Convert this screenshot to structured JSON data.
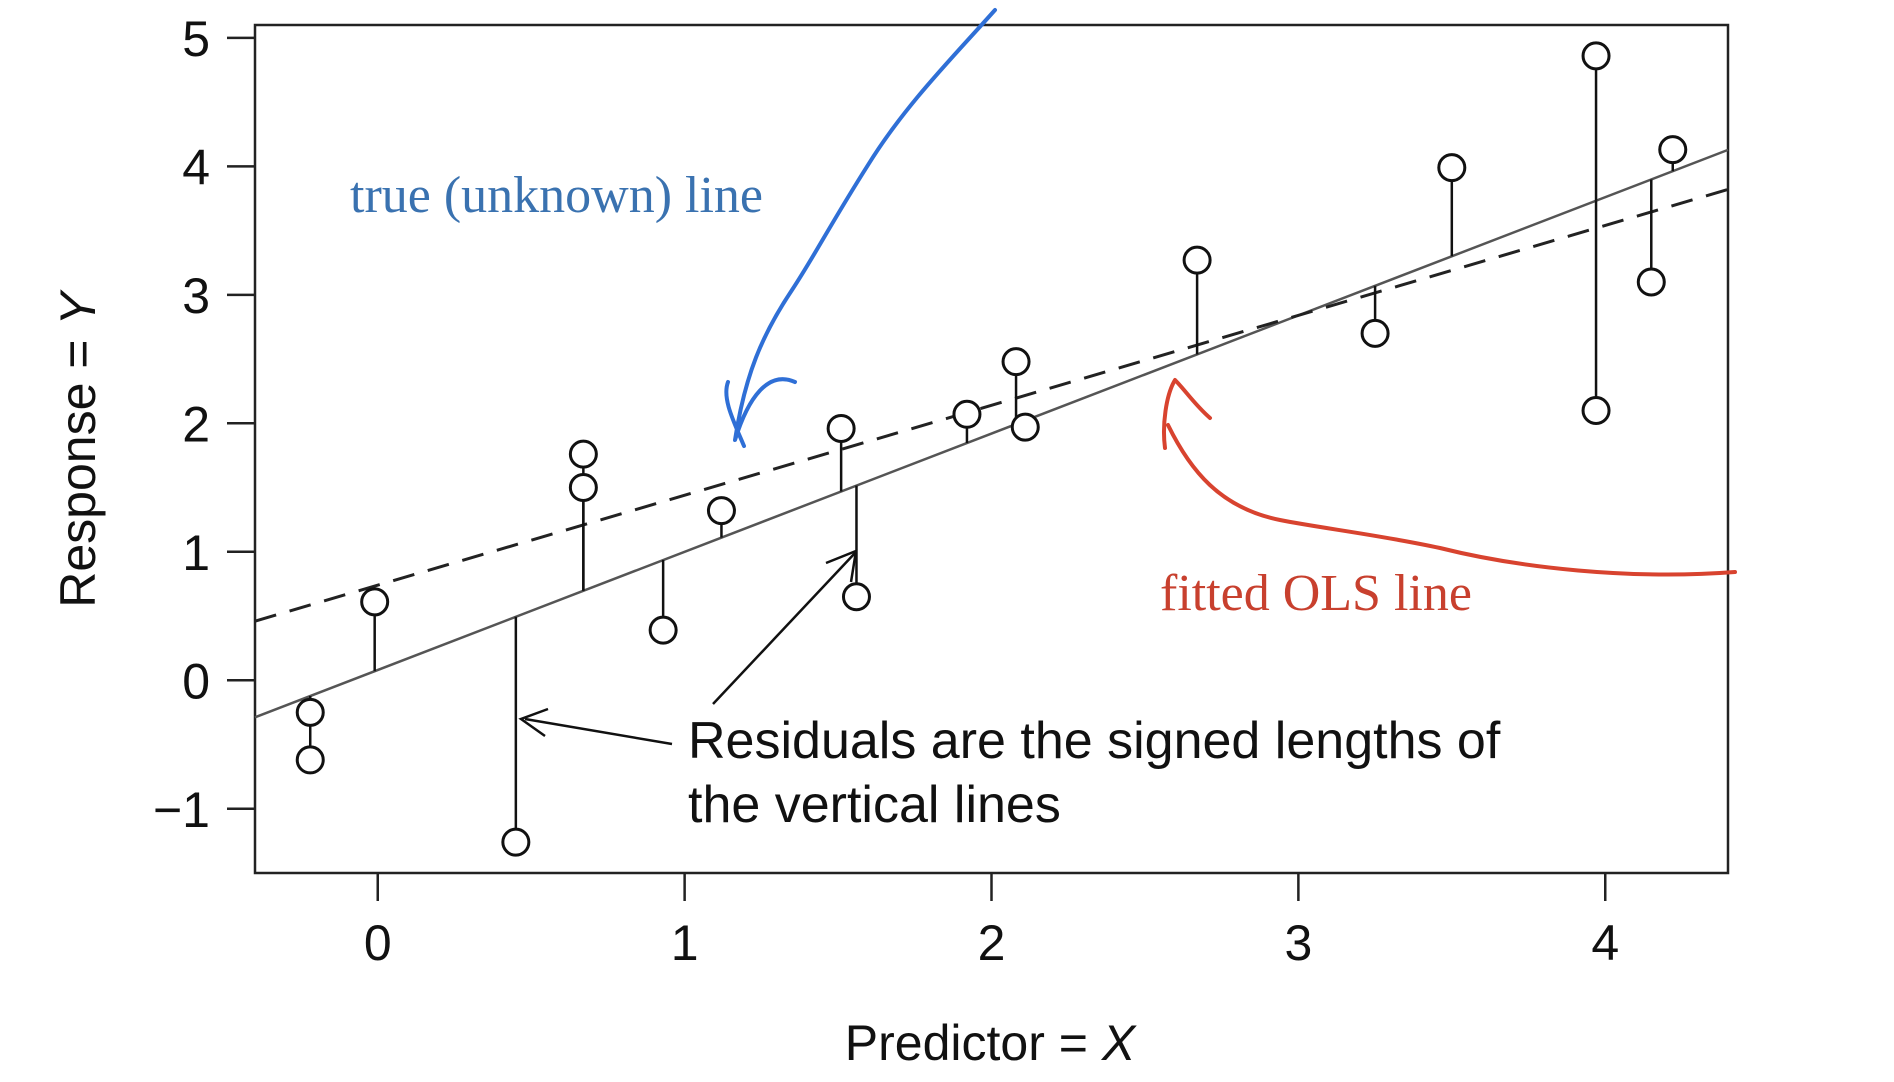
{
  "chart_data": {
    "type": "scatter",
    "xlabel_text": "Predictor = ",
    "xlabel_var": "X",
    "ylabel_text": "Response = ",
    "ylabel_var": "Y",
    "xlim": [
      -0.4,
      4.4
    ],
    "ylim": [
      -1.5,
      5.1
    ],
    "xticks": [
      0,
      1,
      2,
      3,
      4
    ],
    "yticks": [
      -1,
      0,
      1,
      2,
      3,
      4,
      5
    ],
    "xtick_labels": [
      "0",
      "1",
      "2",
      "3",
      "4"
    ],
    "ytick_labels": [
      "−1",
      "0",
      "1",
      "2",
      "3",
      "4",
      "5"
    ],
    "grid": false,
    "points": [
      {
        "x": -0.22,
        "y": -0.25
      },
      {
        "x": -0.22,
        "y": -0.62
      },
      {
        "x": -0.01,
        "y": 0.61
      },
      {
        "x": 0.45,
        "y": -1.26
      },
      {
        "x": 0.67,
        "y": 1.76
      },
      {
        "x": 0.67,
        "y": 1.5
      },
      {
        "x": 0.93,
        "y": 0.39
      },
      {
        "x": 1.12,
        "y": 1.32
      },
      {
        "x": 1.51,
        "y": 1.96
      },
      {
        "x": 1.56,
        "y": 0.65
      },
      {
        "x": 1.92,
        "y": 2.07
      },
      {
        "x": 2.08,
        "y": 2.48
      },
      {
        "x": 2.11,
        "y": 1.97
      },
      {
        "x": 2.67,
        "y": 3.27
      },
      {
        "x": 3.25,
        "y": 2.7
      },
      {
        "x": 3.5,
        "y": 3.99
      },
      {
        "x": 3.97,
        "y": 4.86
      },
      {
        "x": 3.97,
        "y": 2.1
      },
      {
        "x": 4.15,
        "y": 3.1
      },
      {
        "x": 4.22,
        "y": 4.13
      }
    ],
    "fitted_line": {
      "intercept": 0.08,
      "slope": 0.92,
      "style": "solid"
    },
    "true_line": {
      "intercept": 0.74,
      "slope": 0.7,
      "style": "dashed"
    },
    "annotation": [
      "Residuals are the signed lengths of",
      "the vertical lines"
    ]
  },
  "handwritten": {
    "true_label": "true (unknown) line",
    "ols_label": "fitted OLS line",
    "blue": "#2f6fd6",
    "red": "#d8432f",
    "blue_text": "#3a72b0",
    "red_text": "#c8402e"
  }
}
